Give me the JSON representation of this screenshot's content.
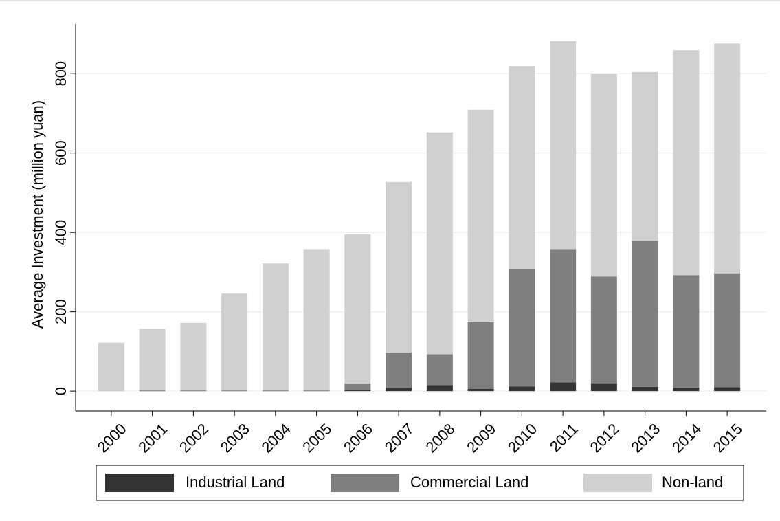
{
  "chart_data": {
    "type": "stacked_bar",
    "y_label": "Average Investment (million yuan)",
    "categories": [
      "2000",
      "2001",
      "2002",
      "2003",
      "2004",
      "2005",
      "2006",
      "2007",
      "2008",
      "2009",
      "2010",
      "2011",
      "2012",
      "2013",
      "2014",
      "2015"
    ],
    "series": [
      {
        "name": "Industrial Land",
        "color": "#333333",
        "values": [
          0,
          1,
          1,
          1,
          1,
          1,
          2,
          8,
          15,
          6,
          12,
          22,
          20,
          11,
          9,
          10
        ]
      },
      {
        "name": "Commercial Land",
        "color": "#7f7f7f",
        "values": [
          0,
          0,
          0,
          0,
          0,
          0,
          17,
          89,
          78,
          168,
          295,
          336,
          269,
          368,
          283,
          287
        ]
      },
      {
        "name": "Non-land",
        "color": "#d0d0d0",
        "values": [
          122,
          156,
          171,
          245,
          321,
          357,
          376,
          430,
          559,
          535,
          512,
          524,
          511,
          425,
          567,
          579
        ]
      }
    ],
    "ylim": [
      -50,
      925
    ],
    "yticks": [
      0,
      200,
      400,
      600,
      800
    ],
    "grid": true
  }
}
